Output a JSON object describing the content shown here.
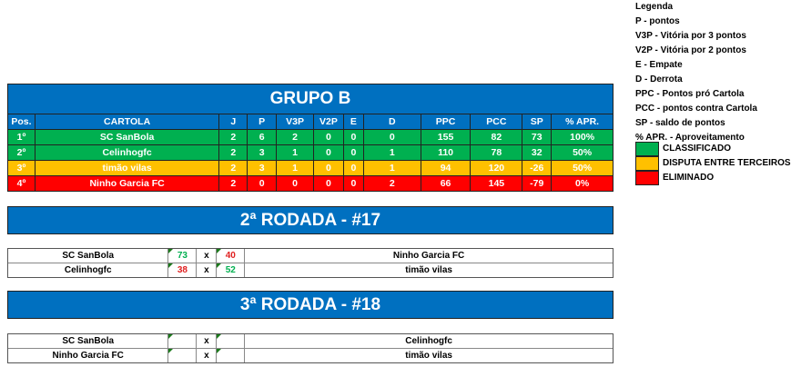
{
  "legend": {
    "title": "Legenda",
    "items": [
      "P - pontos",
      "V3P - Vitória por 3 pontos",
      "V2P - Vitória por 2 pontos",
      "E - Empate",
      "D - Derrota",
      "PPC - Pontos pró Cartola",
      "PCC - pontos contra Cartola",
      "SP - saldo de pontos",
      "% APR. - Aproveitamento"
    ],
    "status": [
      {
        "label": "CLASSIFICADO",
        "color": "#00B050"
      },
      {
        "label": "DISPUTA ENTRE TERCEIROS",
        "color": "#FFC000"
      },
      {
        "label": "ELIMINADO",
        "color": "#FF0000"
      }
    ]
  },
  "group": {
    "title": "GRUPO B",
    "headers": [
      "Pos.",
      "CARTOLA",
      "J",
      "P",
      "V3P",
      "V2P",
      "E",
      "D",
      "PPC",
      "PCC",
      "SP",
      "% APR."
    ],
    "rows": [
      {
        "status": "g",
        "cells": [
          "1º",
          "SC SanBola",
          "2",
          "6",
          "2",
          "0",
          "0",
          "0",
          "155",
          "82",
          "73",
          "100%"
        ]
      },
      {
        "status": "g",
        "cells": [
          "2º",
          "Celinhogfc",
          "2",
          "3",
          "1",
          "0",
          "0",
          "1",
          "110",
          "78",
          "32",
          "50%"
        ]
      },
      {
        "status": "y",
        "cells": [
          "3º",
          "timão vilas",
          "2",
          "3",
          "1",
          "0",
          "0",
          "1",
          "94",
          "120",
          "-26",
          "50%"
        ]
      },
      {
        "status": "r",
        "cells": [
          "4º",
          "Ninho Garcia FC",
          "2",
          "0",
          "0",
          "0",
          "0",
          "2",
          "66",
          "145",
          "-79",
          "0%"
        ]
      }
    ]
  },
  "rounds": [
    {
      "title": "2ª RODADA - #17",
      "matches": [
        {
          "home": "SC SanBola",
          "home_score": "73",
          "sep": "x",
          "away_score": "40",
          "away": "Ninho Garcia FC",
          "home_win": true
        },
        {
          "home": "Celinhogfc",
          "home_score": "38",
          "sep": "x",
          "away_score": "52",
          "away": "timão vilas",
          "home_win": false
        }
      ]
    },
    {
      "title": "3ª RODADA - #18",
      "matches": [
        {
          "home": "SC SanBola",
          "home_score": "",
          "sep": "x",
          "away_score": "",
          "away": "Celinhogfc"
        },
        {
          "home": "Ninho Garcia FC",
          "home_score": "",
          "sep": "x",
          "away_score": "",
          "away": "timão vilas"
        }
      ]
    }
  ]
}
